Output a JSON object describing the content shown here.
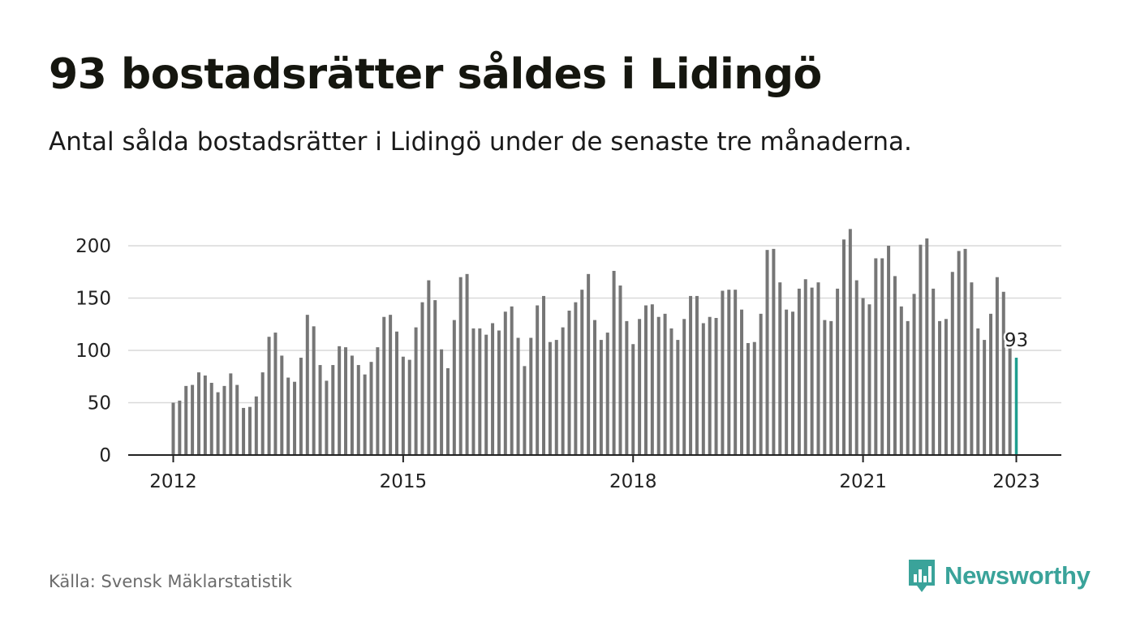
{
  "header": {
    "title": "93 bostadsrätter såldes i Lidingö",
    "subtitle": "Antal sålda bostadsrätter i Lidingö under de senaste tre månaderna."
  },
  "footer": {
    "source": "Källa: Svensk Mäklarstatistik",
    "brand": "Newsworthy"
  },
  "colors": {
    "bar": "#767676",
    "highlight": "#1f9e8f",
    "grid": "#d9d9d9",
    "axis": "#222222",
    "brand": "#3aa39a"
  },
  "icons": {
    "brand_logo": "newsworthy-logo-icon"
  },
  "chart_data": {
    "type": "bar",
    "title": "93 bostadsrätter såldes i Lidingö",
    "ylim": [
      0,
      215
    ],
    "yticks": [
      0,
      50,
      100,
      150,
      200
    ],
    "xticks": [
      "2012",
      "2015",
      "2018",
      "2021",
      "2023"
    ],
    "grid": true,
    "start": "2012-01",
    "end": "2023-01",
    "values": [
      50,
      52,
      66,
      67,
      79,
      76,
      69,
      60,
      66,
      78,
      67,
      45,
      46,
      56,
      79,
      113,
      117,
      95,
      74,
      70,
      93,
      134,
      123,
      86,
      71,
      86,
      104,
      103,
      95,
      86,
      77,
      89,
      103,
      132,
      134,
      118,
      94,
      91,
      122,
      146,
      167,
      148,
      101,
      83,
      129,
      170,
      173,
      121,
      121,
      115,
      126,
      119,
      137,
      142,
      112,
      85,
      112,
      143,
      152,
      108,
      110,
      122,
      138,
      146,
      158,
      173,
      129,
      110,
      117,
      176,
      162,
      128,
      106,
      130,
      143,
      144,
      132,
      135,
      121,
      110,
      130,
      152,
      152,
      126,
      132,
      131,
      157,
      158,
      158,
      139,
      107,
      108,
      135,
      196,
      197,
      165,
      139,
      137,
      159,
      168,
      160,
      165,
      129,
      128,
      159,
      206,
      216,
      167,
      150,
      144,
      188,
      188,
      200,
      171,
      142,
      128,
      154,
      201,
      207,
      159,
      128,
      130,
      175,
      195,
      197,
      165,
      121,
      110,
      135,
      170,
      156,
      105,
      93
    ],
    "highlight_label": "93"
  }
}
